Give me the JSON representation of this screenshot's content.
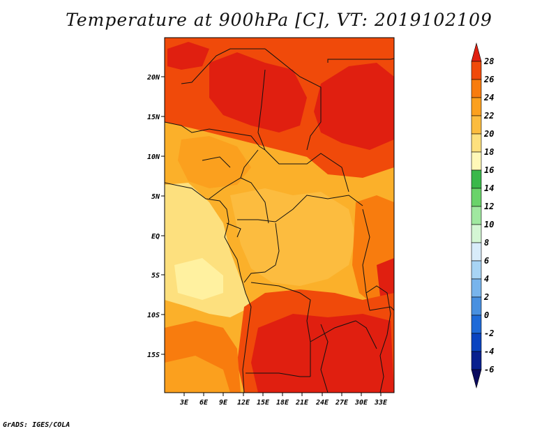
{
  "title": "Temperature at 900hPa [C], VT: 2019102109",
  "credit": "GrADS: IGES/COLA",
  "map": {
    "lat_ticks": [
      "20N",
      "15N",
      "10N",
      "5N",
      "EQ",
      "5S",
      "10S",
      "15S"
    ],
    "lon_ticks": [
      "3E",
      "6E",
      "9E",
      "12E",
      "15E",
      "18E",
      "21E",
      "24E",
      "27E",
      "30E",
      "33E"
    ]
  },
  "colorbar": {
    "labels": [
      "28",
      "26",
      "24",
      "22",
      "20",
      "18",
      "16",
      "14",
      "12",
      "10",
      "8",
      "6",
      "4",
      "2",
      "0",
      "-2",
      "-4",
      "-6"
    ],
    "colors": [
      "#e01f10",
      "#f04a0a",
      "#f87c0e",
      "#fba01e",
      "#fcbc3f",
      "#fde07e",
      "#fff8b8",
      "#3ab84a",
      "#6ad36a",
      "#a0e8a0",
      "#d4f6d4",
      "#d8ecfa",
      "#a8d4f4",
      "#78b4ec",
      "#4890e0",
      "#1e6ad8",
      "#0a44c0",
      "#08208e",
      "#0a0a5e"
    ]
  }
}
